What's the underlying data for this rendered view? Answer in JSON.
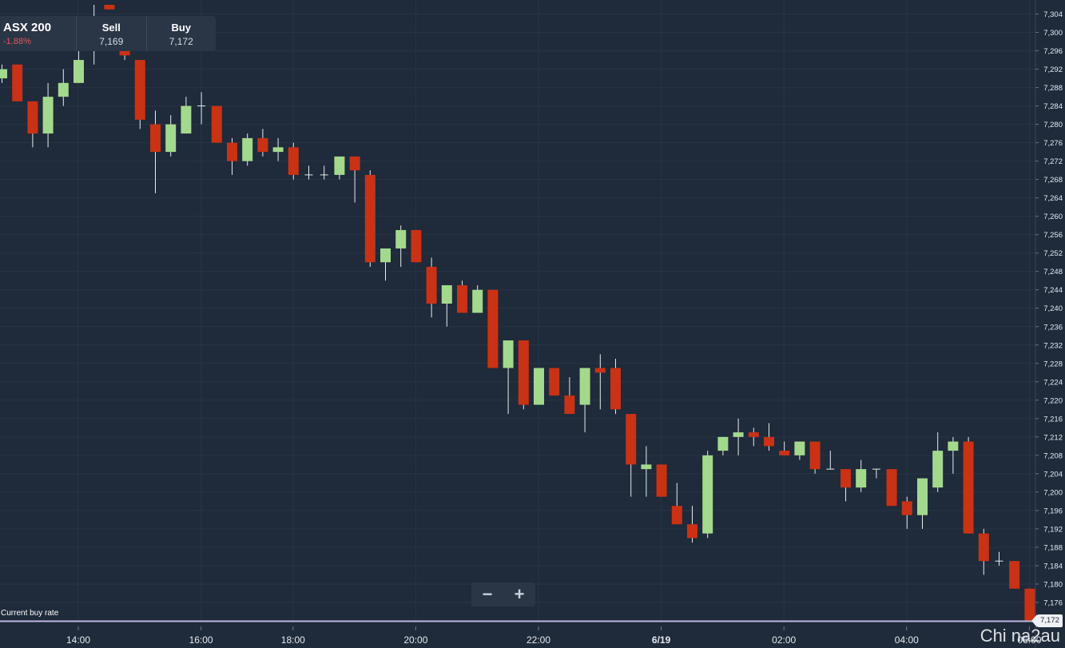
{
  "instrument": {
    "name": "ASX 200",
    "change": "-1.88%",
    "sell_label": "Sell",
    "sell_value": "7,169",
    "buy_label": "Buy",
    "buy_value": "7,172"
  },
  "zoom": {
    "minus": "−",
    "plus": "+"
  },
  "current_rate": {
    "label": "Current buy rate",
    "value": "7,172"
  },
  "watermark": "Chi na2au",
  "colors": {
    "background": "#1f2a3a",
    "up": "#a3d98c",
    "down": "#c93214",
    "grid": "#283545",
    "current_rate_line": "#bdb6e8"
  },
  "chart_data": {
    "type": "candlestick",
    "x_axis": {
      "tick_labels": [
        "14:00",
        "16:00",
        "18:00",
        "20:00",
        "22:00",
        "6/19",
        "02:00",
        "04:00",
        "06:00"
      ],
      "tick_positions": [
        5,
        13,
        19,
        27,
        35,
        43,
        51,
        59,
        67
      ]
    },
    "y_axis": {
      "min": 7172,
      "max": 7306,
      "step": 4,
      "tick_labels": [
        "7,304",
        "7,300",
        "7,296",
        "7,292",
        "7,288",
        "7,284",
        "7,280",
        "7,276",
        "7,272",
        "7,268",
        "7,264",
        "7,260",
        "7,256",
        "7,252",
        "7,248",
        "7,244",
        "7,240",
        "7,236",
        "7,232",
        "7,228",
        "7,224",
        "7,220",
        "7,216",
        "7,212",
        "7,208",
        "7,204",
        "7,200",
        "7,196",
        "7,192",
        "7,188",
        "7,184",
        "7,180",
        "7,176",
        "7,172"
      ],
      "tick_values": [
        7304,
        7300,
        7296,
        7292,
        7288,
        7284,
        7280,
        7276,
        7272,
        7268,
        7264,
        7260,
        7256,
        7252,
        7248,
        7244,
        7240,
        7236,
        7232,
        7228,
        7224,
        7220,
        7216,
        7212,
        7208,
        7204,
        7200,
        7196,
        7192,
        7188,
        7184,
        7180,
        7176,
        7172
      ]
    },
    "candles": [
      {
        "o": 7290,
        "h": 7293,
        "l": 7289,
        "c": 7292
      },
      {
        "o": 7293,
        "h": 7293,
        "l": 7285,
        "c": 7285
      },
      {
        "o": 7285,
        "h": 7285,
        "l": 7275,
        "c": 7278
      },
      {
        "o": 7278,
        "h": 7289,
        "l": 7275,
        "c": 7286
      },
      {
        "o": 7286,
        "h": 7292,
        "l": 7284,
        "c": 7289
      },
      {
        "o": 7289,
        "h": 7296,
        "l": 7289,
        "c": 7294
      },
      {
        "o": 7296,
        "h": 7306,
        "l": 7293,
        "c": 7300
      },
      {
        "o": 7306,
        "h": 7306,
        "l": 7305,
        "c": 7305
      },
      {
        "o": 7299,
        "h": 7301,
        "l": 7294,
        "c": 7295
      },
      {
        "o": 7294,
        "h": 7294,
        "l": 7279,
        "c": 7281
      },
      {
        "o": 7280,
        "h": 7283,
        "l": 7265,
        "c": 7274
      },
      {
        "o": 7274,
        "h": 7282,
        "l": 7273,
        "c": 7280
      },
      {
        "o": 7278,
        "h": 7286,
        "l": 7278,
        "c": 7284
      },
      {
        "o": 7284,
        "h": 7287,
        "l": 7280,
        "c": 7284
      },
      {
        "o": 7284,
        "h": 7284,
        "l": 7276,
        "c": 7276
      },
      {
        "o": 7276,
        "h": 7277,
        "l": 7269,
        "c": 7272
      },
      {
        "o": 7272,
        "h": 7278,
        "l": 7271,
        "c": 7277
      },
      {
        "o": 7277,
        "h": 7279,
        "l": 7273,
        "c": 7274
      },
      {
        "o": 7274,
        "h": 7277,
        "l": 7272,
        "c": 7275
      },
      {
        "o": 7275,
        "h": 7276,
        "l": 7268,
        "c": 7269
      },
      {
        "o": 7269,
        "h": 7271,
        "l": 7268,
        "c": 7269
      },
      {
        "o": 7269,
        "h": 7271,
        "l": 7268,
        "c": 7269
      },
      {
        "o": 7269,
        "h": 7273,
        "l": 7268,
        "c": 7273
      },
      {
        "o": 7273,
        "h": 7273,
        "l": 7263,
        "c": 7270
      },
      {
        "o": 7269,
        "h": 7270,
        "l": 7249,
        "c": 7250
      },
      {
        "o": 7250,
        "h": 7253,
        "l": 7246,
        "c": 7253
      },
      {
        "o": 7253,
        "h": 7258,
        "l": 7249,
        "c": 7257
      },
      {
        "o": 7257,
        "h": 7257,
        "l": 7250,
        "c": 7250
      },
      {
        "o": 7249,
        "h": 7251,
        "l": 7238,
        "c": 7241
      },
      {
        "o": 7241,
        "h": 7245,
        "l": 7236,
        "c": 7245
      },
      {
        "o": 7245,
        "h": 7246,
        "l": 7239,
        "c": 7239
      },
      {
        "o": 7239,
        "h": 7245,
        "l": 7239,
        "c": 7244
      },
      {
        "o": 7244,
        "h": 7244,
        "l": 7227,
        "c": 7227
      },
      {
        "o": 7227,
        "h": 7233,
        "l": 7217,
        "c": 7233
      },
      {
        "o": 7233,
        "h": 7233,
        "l": 7218,
        "c": 7219
      },
      {
        "o": 7219,
        "h": 7227,
        "l": 7219,
        "c": 7227
      },
      {
        "o": 7227,
        "h": 7227,
        "l": 7221,
        "c": 7221
      },
      {
        "o": 7221,
        "h": 7225,
        "l": 7217,
        "c": 7217
      },
      {
        "o": 7219,
        "h": 7227,
        "l": 7213,
        "c": 7227
      },
      {
        "o": 7227,
        "h": 7230,
        "l": 7218,
        "c": 7226
      },
      {
        "o": 7227,
        "h": 7229,
        "l": 7217,
        "c": 7218
      },
      {
        "o": 7217,
        "h": 7217,
        "l": 7199,
        "c": 7206
      },
      {
        "o": 7205,
        "h": 7210,
        "l": 7199,
        "c": 7206
      },
      {
        "o": 7206,
        "h": 7206,
        "l": 7199,
        "c": 7199
      },
      {
        "o": 7197,
        "h": 7202,
        "l": 7193,
        "c": 7193
      },
      {
        "o": 7193,
        "h": 7197,
        "l": 7189,
        "c": 7190
      },
      {
        "o": 7191,
        "h": 7209,
        "l": 7190,
        "c": 7208
      },
      {
        "o": 7209,
        "h": 7212,
        "l": 7208,
        "c": 7212
      },
      {
        "o": 7212,
        "h": 7216,
        "l": 7208,
        "c": 7213
      },
      {
        "o": 7213,
        "h": 7214,
        "l": 7210,
        "c": 7212
      },
      {
        "o": 7212,
        "h": 7215,
        "l": 7209,
        "c": 7210
      },
      {
        "o": 7209,
        "h": 7211,
        "l": 7208,
        "c": 7208
      },
      {
        "o": 7208,
        "h": 7211,
        "l": 7207,
        "c": 7211
      },
      {
        "o": 7211,
        "h": 7211,
        "l": 7204,
        "c": 7205
      },
      {
        "o": 7205,
        "h": 7209,
        "l": 7205,
        "c": 7205
      },
      {
        "o": 7205,
        "h": 7205,
        "l": 7198,
        "c": 7201
      },
      {
        "o": 7201,
        "h": 7207,
        "l": 7200,
        "c": 7205
      },
      {
        "o": 7205,
        "h": 7205,
        "l": 7203,
        "c": 7205
      },
      {
        "o": 7205,
        "h": 7205,
        "l": 7197,
        "c": 7197
      },
      {
        "o": 7198,
        "h": 7199,
        "l": 7192,
        "c": 7195
      },
      {
        "o": 7195,
        "h": 7203,
        "l": 7192,
        "c": 7203
      },
      {
        "o": 7201,
        "h": 7213,
        "l": 7200,
        "c": 7209
      },
      {
        "o": 7209,
        "h": 7212,
        "l": 7204,
        "c": 7211
      },
      {
        "o": 7211,
        "h": 7212,
        "l": 7191,
        "c": 7191
      },
      {
        "o": 7191,
        "h": 7192,
        "l": 7182,
        "c": 7185
      },
      {
        "o": 7185,
        "h": 7187,
        "l": 7184,
        "c": 7185
      },
      {
        "o": 7185,
        "h": 7185,
        "l": 7179,
        "c": 7179
      },
      {
        "o": 7179,
        "h": 7179,
        "l": 7172,
        "c": 7172
      }
    ],
    "current_buy_rate": 7172
  }
}
